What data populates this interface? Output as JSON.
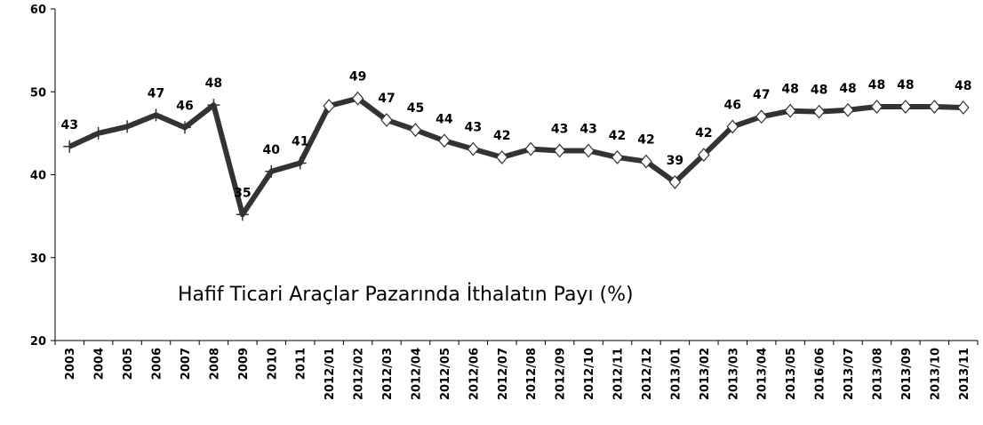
{
  "chart_data": {
    "type": "line",
    "annotation": "Hafif Ticari Araçlar Pazarında İthalatın Payı (%)",
    "categories": [
      "2003",
      "2004",
      "2005",
      "2006",
      "2007",
      "2008",
      "2009",
      "2010",
      "2011",
      "2012/01",
      "2012/02",
      "2012/03",
      "2012/04",
      "2012/05",
      "2012/06",
      "2012/07",
      "2012/08",
      "2012/09",
      "2012/10",
      "2012/11",
      "2012/12",
      "2013/01",
      "2013/02",
      "2013/03",
      "2013/04",
      "2013/05",
      "2016/06",
      "2013/07",
      "2013/08",
      "2013/09",
      "2013/10",
      "2013/11"
    ],
    "values": [
      43.4,
      45.0,
      45.8,
      47.2,
      45.7,
      48.4,
      35.2,
      40.4,
      41.4,
      48.3,
      49.2,
      46.6,
      45.4,
      44.1,
      43.1,
      42.1,
      43.1,
      42.9,
      42.9,
      42.1,
      41.6,
      39.1,
      42.4,
      45.8,
      47.0,
      47.7,
      47.6,
      47.8,
      48.2,
      48.2,
      48.2,
      48.1
    ],
    "value_labels": [
      "43",
      null,
      null,
      "47",
      "46",
      "48",
      "35",
      "40",
      "41",
      null,
      "49",
      "47",
      "45",
      "44",
      "43",
      "42",
      null,
      "43",
      "43",
      "42",
      "42",
      "39",
      "42",
      "46",
      "47",
      "48",
      "48",
      "48",
      "48",
      "48",
      null,
      "48"
    ],
    "markers": [
      "plus",
      "plus",
      "plus",
      "plus",
      "plus",
      "plus",
      "plus",
      "plus",
      "plus",
      "diamond",
      "diamond",
      "diamond",
      "diamond",
      "diamond",
      "diamond",
      "diamond",
      "diamond",
      "diamond",
      "diamond",
      "diamond",
      "diamond",
      "diamond",
      "diamond",
      "diamond",
      "diamond",
      "diamond",
      "diamond",
      "diamond",
      "diamond",
      "diamond",
      "diamond",
      "diamond"
    ],
    "color": "#333333",
    "ylim": [
      20,
      60
    ],
    "yticks": [
      20,
      30,
      40,
      50,
      60
    ]
  }
}
